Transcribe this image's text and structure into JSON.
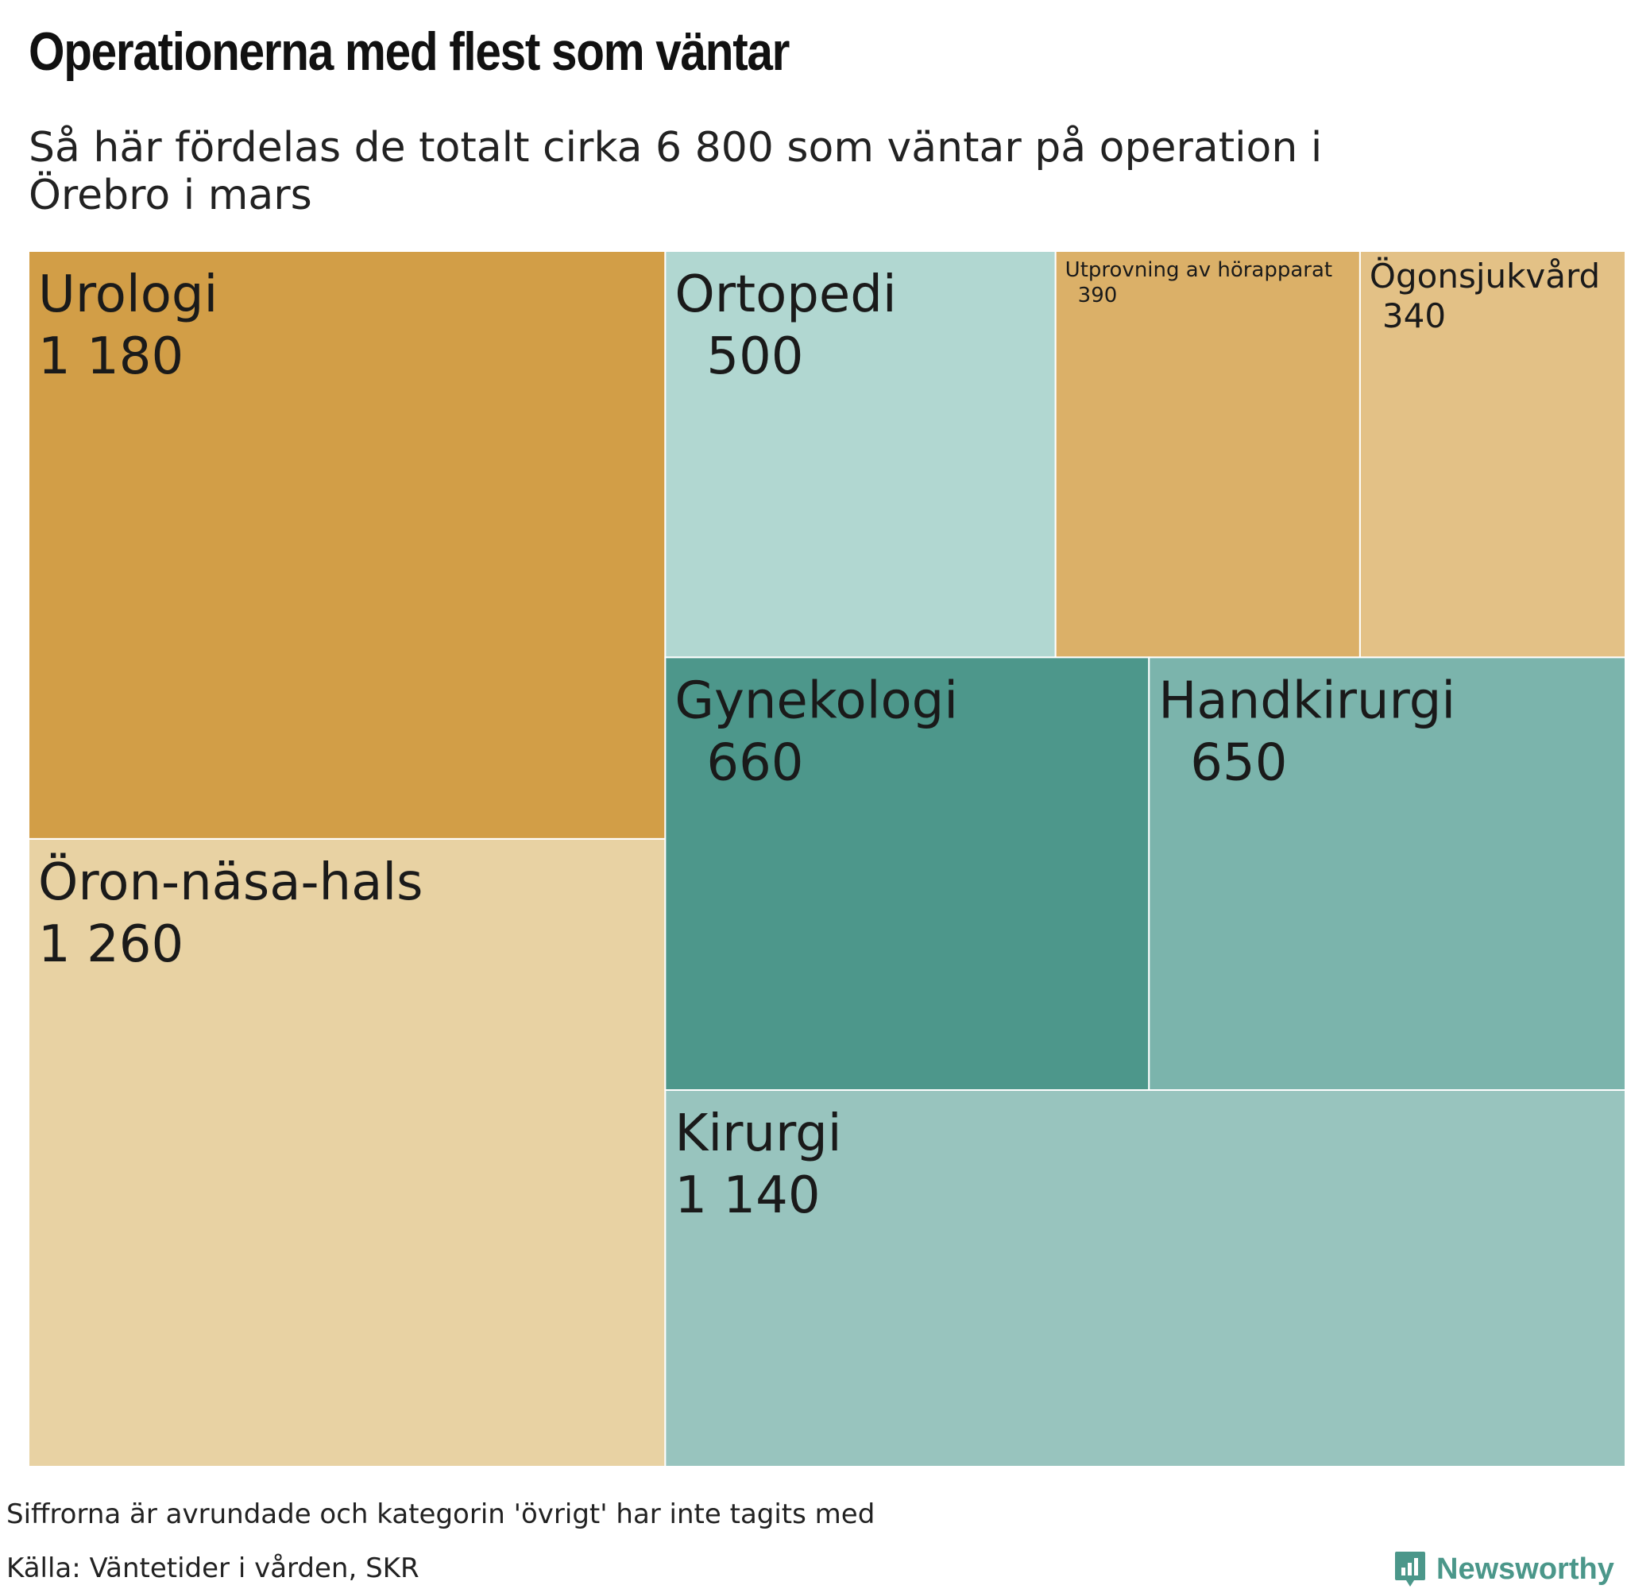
{
  "title": "Operationerna med flest som väntar",
  "subtitle": "Så här fördelas de totalt cirka 6 800 som väntar på operation i Örebro i mars",
  "footnote": "Siffrorna är avrundade och kategorin 'övrigt' har inte tagits med",
  "source": "Källa: Väntetider i vården, SKR",
  "brand": {
    "name": "Newsworthy",
    "color": "#4b978a",
    "icon": "newsworthy-logo-icon"
  },
  "chart_data": {
    "type": "treemap",
    "title": "Operationerna med flest som väntar",
    "items": [
      {
        "name": "Urologi",
        "value": 1180,
        "value_label": "1 180",
        "color": "#d29e47"
      },
      {
        "name": "Öron-näsa-hals",
        "value": 1260,
        "value_label": "1 260",
        "color": "#e8d2a3"
      },
      {
        "name": "Ortopedi",
        "value": 500,
        "value_label": "500",
        "color": "#b1d7d1"
      },
      {
        "name": "Utprovning av hörapparat",
        "value": 390,
        "value_label": "390",
        "color": "#dbb068"
      },
      {
        "name": "Ögonsjukvård",
        "value": 340,
        "value_label": "340",
        "color": "#e3c186"
      },
      {
        "name": "Gynekologi",
        "value": 660,
        "value_label": "660",
        "color": "#4d978b"
      },
      {
        "name": "Handkirurgi",
        "value": 650,
        "value_label": "650",
        "color": "#7bb4ac"
      },
      {
        "name": "Kirurgi",
        "value": 1140,
        "value_label": "1 140",
        "color": "#98c4be"
      }
    ]
  }
}
